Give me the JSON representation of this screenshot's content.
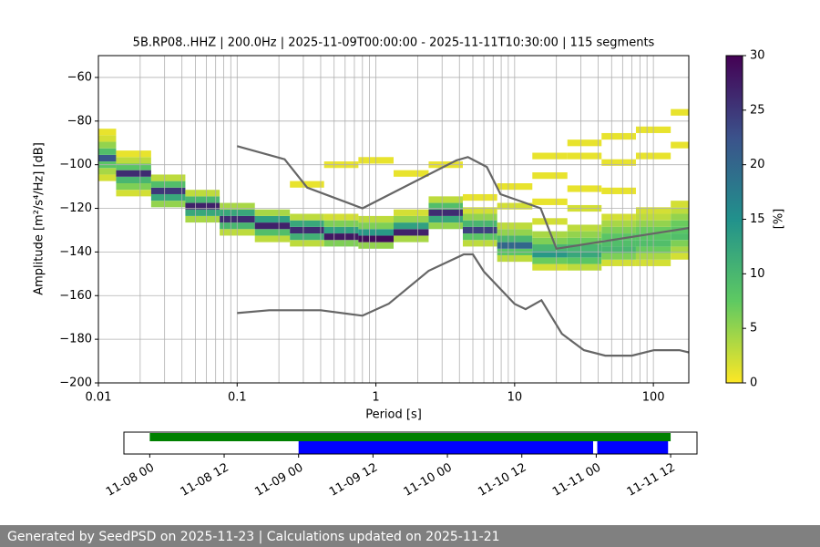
{
  "chart_data": [
    {
      "type": "heatmap",
      "title": "5B.RP08..HHZ | 200.0Hz | 2025-11-09T00:00:00 - 2025-11-11T10:30:00 | 115 segments",
      "xlabel": "Period [s]",
      "ylabel": "Amplitude [m²/s⁴/Hz] [dB]",
      "log_x": true,
      "grid": true,
      "xlim": [
        0.01,
        180
      ],
      "ylim": [
        -200,
        -50
      ],
      "xticks": [
        0.01,
        0.1,
        1,
        10,
        100
      ],
      "xminorticks": [
        0.02,
        0.03,
        0.04,
        0.05,
        0.06,
        0.07,
        0.08,
        0.09,
        0.2,
        0.3,
        0.4,
        0.5,
        0.6,
        0.7,
        0.8,
        0.9,
        2,
        3,
        4,
        5,
        6,
        7,
        8,
        9,
        20,
        30,
        40,
        50,
        60,
        70,
        80,
        90
      ],
      "yticks": [
        {
          "value": -200,
          "label": "−200"
        },
        {
          "value": -180,
          "label": "−180"
        },
        {
          "value": -160,
          "label": "−160"
        },
        {
          "value": -140,
          "label": "−140"
        },
        {
          "value": -120,
          "label": "−120"
        },
        {
          "value": -100,
          "label": "−100"
        },
        {
          "value": -80,
          "label": "−80"
        },
        {
          "value": -60,
          "label": "−60"
        }
      ],
      "colormap": [
        "#fde725",
        "#5ec962",
        "#21918c",
        "#3b528b",
        "#440154"
      ],
      "clim": [
        0,
        30
      ],
      "colorbar_ticks": [
        0,
        5,
        10,
        15,
        20,
        25,
        30
      ],
      "colorbar_label": "[%]",
      "columns": [
        {
          "period": 0.01,
          "db": [
            -106,
            -103,
            -100,
            -97,
            -94,
            -91,
            -88,
            -85
          ],
          "percent": [
            2,
            4,
            8,
            22,
            9,
            5,
            2,
            1
          ]
        },
        {
          "period": 0.018,
          "db": [
            -113,
            -110,
            -107,
            -104,
            -101,
            -98,
            -95
          ],
          "percent": [
            2,
            6,
            10,
            26,
            8,
            3,
            1
          ]
        },
        {
          "period": 0.032,
          "db": [
            -118,
            -115,
            -112,
            -109,
            -106
          ],
          "percent": [
            5,
            12,
            25,
            9,
            3
          ]
        },
        {
          "period": 0.056,
          "db": [
            -125,
            -122,
            -119,
            -116,
            -113
          ],
          "percent": [
            4,
            12,
            27,
            10,
            3
          ]
        },
        {
          "period": 0.1,
          "db": [
            -131,
            -128,
            -125,
            -122,
            -119
          ],
          "percent": [
            3,
            10,
            26,
            12,
            4
          ]
        },
        {
          "period": 0.18,
          "db": [
            -134,
            -131,
            -128,
            -125,
            -122
          ],
          "percent": [
            3,
            9,
            27,
            13,
            4
          ]
        },
        {
          "period": 0.32,
          "db": [
            -136,
            -133,
            -130,
            -127,
            -124,
            -109
          ],
          "percent": [
            3,
            11,
            26,
            12,
            3,
            1
          ]
        },
        {
          "period": 0.56,
          "db": [
            -136,
            -133,
            -130,
            -127,
            -124,
            -100
          ],
          "percent": [
            6,
            28,
            13,
            6,
            2,
            1
          ]
        },
        {
          "period": 1,
          "db": [
            -137,
            -134,
            -131,
            -128,
            -125,
            -98
          ],
          "percent": [
            5,
            29,
            14,
            6,
            3,
            1
          ]
        },
        {
          "period": 1.8,
          "db": [
            -134,
            -131,
            -128,
            -125,
            -122,
            -104
          ],
          "percent": [
            4,
            27,
            13,
            5,
            2,
            1
          ]
        },
        {
          "period": 3.2,
          "db": [
            -128,
            -125,
            -122,
            -119,
            -116,
            -100
          ],
          "percent": [
            5,
            12,
            26,
            9,
            3,
            1
          ]
        },
        {
          "period": 5.6,
          "db": [
            -136,
            -133,
            -130,
            -127,
            -124,
            -121,
            -115
          ],
          "percent": [
            3,
            8,
            24,
            10,
            5,
            2,
            1
          ]
        },
        {
          "period": 10,
          "db": [
            -143,
            -140,
            -137,
            -134,
            -131,
            -128,
            -119,
            -110
          ],
          "percent": [
            3,
            8,
            20,
            10,
            5,
            3,
            2,
            1
          ]
        },
        {
          "period": 18,
          "db": [
            -147,
            -144,
            -141,
            -138,
            -135,
            -132,
            -126,
            -117,
            -105,
            -96
          ],
          "percent": [
            2,
            7,
            14,
            10,
            6,
            4,
            2,
            1,
            1,
            1
          ]
        },
        {
          "period": 32,
          "db": [
            -147,
            -144,
            -141,
            -138,
            -135,
            -132,
            -129,
            -120,
            -111,
            -96,
            -90
          ],
          "percent": [
            3,
            8,
            12,
            10,
            7,
            5,
            3,
            2,
            1,
            1,
            1
          ]
        },
        {
          "period": 56,
          "db": [
            -145,
            -142,
            -139,
            -136,
            -133,
            -130,
            -127,
            -124,
            -112,
            -99,
            -87
          ],
          "percent": [
            2,
            6,
            10,
            9,
            8,
            6,
            4,
            2,
            1,
            1,
            1
          ]
        },
        {
          "period": 100,
          "db": [
            -145,
            -142,
            -139,
            -136,
            -133,
            -130,
            -127,
            -124,
            -121,
            -96,
            -84
          ],
          "percent": [
            2,
            4,
            7,
            9,
            8,
            7,
            5,
            3,
            2,
            1,
            1
          ]
        },
        {
          "period": 178,
          "db": [
            -142,
            -139,
            -136,
            -133,
            -130,
            -127,
            -124,
            -121,
            -118,
            -91,
            -76
          ],
          "percent": [
            2,
            4,
            6,
            9,
            8,
            7,
            5,
            3,
            2,
            1,
            1
          ]
        }
      ],
      "noise_models": [
        {
          "color": "#666666",
          "x": [
            0.1,
            0.22,
            0.32,
            0.8,
            3.8,
            4.6,
            6.3,
            7.9,
            15.4,
            20,
            180
          ],
          "y": [
            -91.5,
            -97.5,
            -110.5,
            -120,
            -98,
            -96.5,
            -101,
            -113.5,
            -120,
            -138.5,
            -129
          ]
        },
        {
          "color": "#666666",
          "x": [
            0.1,
            0.17,
            0.4,
            0.8,
            1.24,
            2.4,
            4.3,
            5,
            6,
            10,
            12,
            15.6,
            21.9,
            31.6,
            45,
            70,
            101,
            154,
            180
          ],
          "y": [
            -168,
            -166.7,
            -166.7,
            -169.2,
            -163.7,
            -148.6,
            -141.1,
            -141.1,
            -149,
            -163.8,
            -166.2,
            -162.1,
            -177.5,
            -185,
            -187.5,
            -187.5,
            -185,
            -185,
            -186
          ]
        }
      ]
    },
    {
      "type": "timeline",
      "xlim": [
        "11-07 19:50",
        "11-11 16:15"
      ],
      "xticks": [
        "11-08 00",
        "11-08 12",
        "11-09 00",
        "11-09 12",
        "11-10 00",
        "11-10 12",
        "11-11 00",
        "11-11 12"
      ],
      "bars": [
        {
          "color": "#008000",
          "row": 0,
          "start": "11-08 00",
          "end": "11-11 12"
        },
        {
          "color": "#0000ff",
          "row": 1,
          "start": "11-09 00",
          "end": "11-10 23:30"
        },
        {
          "color": "#0000ff",
          "row": 1,
          "start": "11-11 00:10",
          "end": "11-11 11:35"
        }
      ]
    }
  ],
  "footer": "Generated by SeedPSD on 2025-11-23 | Calculations updated on 2025-11-21"
}
